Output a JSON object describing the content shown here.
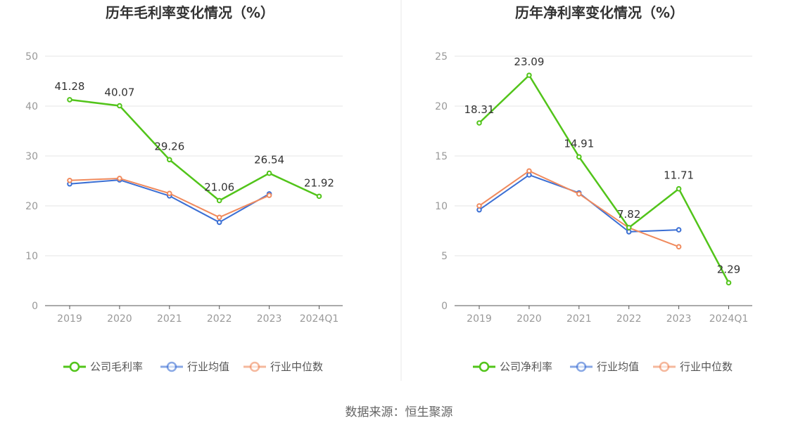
{
  "colors": {
    "company": "#52c41a",
    "industry_avg": "#3b6fd4",
    "industry_median": "#f08a5d",
    "grid": "#e6e6e6",
    "axis": "#555555",
    "divider": "#e8e8e8"
  },
  "source_text": "数据来源：恒生聚源",
  "chart_data": [
    {
      "type": "line",
      "title": "历年毛利率变化情况（%）",
      "categories": [
        "2019",
        "2020",
        "2021",
        "2022",
        "2023",
        "2024Q1"
      ],
      "ylim": [
        0,
        50
      ],
      "yticks": [
        0,
        10,
        20,
        30,
        40,
        50
      ],
      "grid": true,
      "legend_position": "bottom",
      "series": [
        {
          "name": "公司毛利率",
          "key": "company",
          "values": [
            41.28,
            40.07,
            29.26,
            21.06,
            26.54,
            21.92
          ],
          "labels": [
            "41.28",
            "40.07",
            "29.26",
            "21.06",
            "26.54",
            "21.92"
          ]
        },
        {
          "name": "行业均值",
          "key": "industry_avg",
          "values": [
            24.4,
            25.2,
            22.0,
            16.7,
            22.4,
            null
          ]
        },
        {
          "name": "行业中位数",
          "key": "industry_median",
          "values": [
            25.1,
            25.5,
            22.5,
            17.7,
            22.1,
            null
          ]
        }
      ]
    },
    {
      "type": "line",
      "title": "历年净利率变化情况（%）",
      "categories": [
        "2019",
        "2020",
        "2021",
        "2022",
        "2023",
        "2024Q1"
      ],
      "ylim": [
        0,
        25
      ],
      "yticks": [
        0,
        5,
        10,
        15,
        20,
        25
      ],
      "grid": true,
      "legend_position": "bottom",
      "series": [
        {
          "name": "公司净利率",
          "key": "company",
          "values": [
            18.31,
            23.09,
            14.91,
            7.82,
            11.71,
            2.29
          ],
          "labels": [
            "18.31",
            "23.09",
            "14.91",
            "7.82",
            "11.71",
            "2.29"
          ]
        },
        {
          "name": "行业均值",
          "key": "industry_avg",
          "values": [
            9.6,
            13.1,
            11.3,
            7.4,
            7.6,
            null
          ]
        },
        {
          "name": "行业中位数",
          "key": "industry_median",
          "values": [
            10.0,
            13.5,
            11.2,
            7.8,
            5.9,
            null
          ]
        }
      ]
    }
  ]
}
